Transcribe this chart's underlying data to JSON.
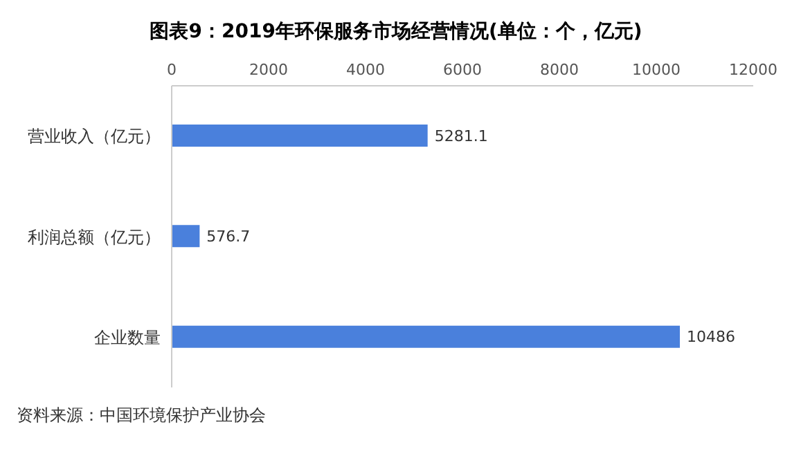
{
  "chart_data": {
    "type": "bar",
    "orientation": "horizontal",
    "title": "图表9：2019年环保服务市场经营情况(单位：个，亿元)",
    "categories": [
      "营业收入（亿元）",
      "利润总额（亿元）",
      "企业数量"
    ],
    "values": [
      5281.1,
      576.7,
      10486
    ],
    "color": "#4a80dc",
    "xlim": [
      0,
      12000
    ],
    "xticks": [
      0,
      2000,
      4000,
      6000,
      8000,
      10000,
      12000
    ],
    "data_labels": true,
    "grid": false,
    "annotations": [
      "资料来源：中国环境保护产业协会"
    ]
  }
}
